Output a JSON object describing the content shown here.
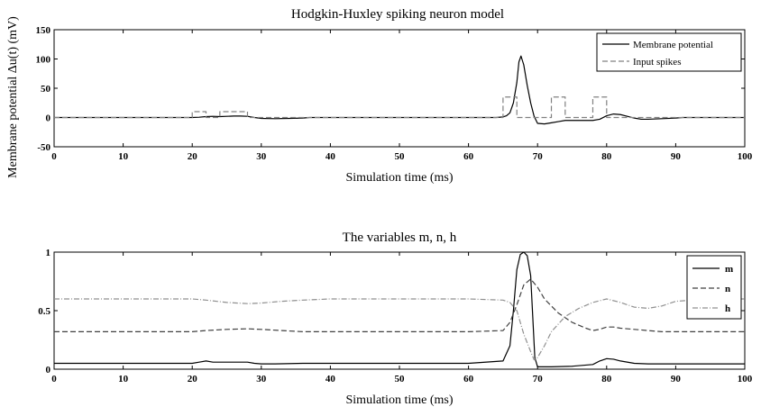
{
  "chart_data": [
    {
      "type": "line",
      "title": "Hodgkin-Huxley spiking neuron model",
      "xlabel": "Simulation time (ms)",
      "ylabel": "Membrane potential Δu(t) (mV)",
      "xlim": [
        0,
        100
      ],
      "ylim": [
        -50,
        150
      ],
      "xticks": [
        0,
        10,
        20,
        30,
        40,
        50,
        60,
        70,
        80,
        90,
        100
      ],
      "yticks": [
        -50,
        0,
        50,
        100,
        150
      ],
      "legend_position": "top-right",
      "series": [
        {
          "name": "Membrane potential",
          "style": "solid",
          "color": "#000000",
          "x": [
            0,
            20,
            21,
            22,
            23,
            24,
            25,
            26,
            27,
            28,
            29,
            30,
            32,
            34,
            36,
            37,
            40,
            50,
            60,
            64,
            65,
            65.5,
            66,
            66.5,
            67,
            67.3,
            67.6,
            68,
            68.5,
            69,
            69.5,
            70,
            71,
            72,
            73,
            74,
            76,
            78,
            79,
            80,
            81,
            82,
            83,
            84,
            85,
            86,
            88,
            90,
            91,
            100
          ],
          "y": [
            0,
            0,
            0.5,
            1.5,
            2,
            1.5,
            2,
            2.5,
            2.5,
            2,
            0,
            -1.5,
            -2,
            -1.5,
            -1,
            0,
            0,
            0,
            0,
            0,
            1,
            3,
            8,
            25,
            60,
            95,
            105,
            90,
            55,
            25,
            2,
            -10,
            -11,
            -9,
            -7,
            -5,
            -5,
            -5,
            -3,
            3,
            6,
            5,
            2,
            -1,
            -3,
            -3,
            -2,
            -1,
            0,
            0
          ]
        },
        {
          "name": "Input spikes",
          "style": "dashed",
          "color": "#808080",
          "x": [
            0,
            20,
            20,
            22,
            22,
            24,
            24,
            28,
            28,
            65,
            65,
            67,
            67,
            72,
            72,
            74,
            74,
            78,
            78,
            80,
            80,
            100
          ],
          "y": [
            0,
            0,
            10,
            10,
            0,
            0,
            10,
            10,
            0,
            0,
            35,
            35,
            0,
            0,
            35,
            35,
            0,
            0,
            35,
            35,
            0,
            0
          ]
        }
      ]
    },
    {
      "type": "line",
      "title": "The variables m, n, h",
      "xlabel": "Simulation time (ms)",
      "ylabel": "",
      "xlim": [
        0,
        100
      ],
      "ylim": [
        0,
        1
      ],
      "xticks": [
        0,
        10,
        20,
        30,
        40,
        50,
        60,
        70,
        80,
        90,
        100
      ],
      "yticks": [
        0,
        0.5,
        1
      ],
      "legend_position": "top-right",
      "series": [
        {
          "name": "m",
          "style": "solid",
          "color": "#000000",
          "x": [
            0,
            20,
            21,
            22,
            23,
            24,
            25,
            26,
            28,
            29,
            30,
            32,
            36,
            40,
            50,
            60,
            65,
            66,
            66.5,
            67,
            67.5,
            68,
            68.5,
            69,
            69.3,
            69.6,
            70,
            72,
            75,
            78,
            79,
            80,
            81,
            82,
            84,
            86,
            90,
            100
          ],
          "y": [
            0.05,
            0.05,
            0.06,
            0.07,
            0.06,
            0.06,
            0.06,
            0.06,
            0.06,
            0.05,
            0.045,
            0.045,
            0.05,
            0.05,
            0.05,
            0.05,
            0.07,
            0.2,
            0.5,
            0.85,
            0.98,
            1.0,
            0.97,
            0.8,
            0.45,
            0.1,
            0.02,
            0.02,
            0.025,
            0.04,
            0.07,
            0.09,
            0.085,
            0.07,
            0.05,
            0.045,
            0.045,
            0.045
          ]
        },
        {
          "name": "n",
          "style": "dashed",
          "color": "#404040",
          "x": [
            0,
            20,
            22,
            25,
            28,
            30,
            33,
            36,
            40,
            50,
            60,
            65,
            66,
            67,
            68,
            69,
            70,
            71,
            73,
            75,
            77,
            78,
            79,
            80,
            81,
            82,
            84,
            86,
            88,
            90,
            100
          ],
          "y": [
            0.32,
            0.32,
            0.33,
            0.34,
            0.345,
            0.34,
            0.33,
            0.32,
            0.32,
            0.32,
            0.32,
            0.33,
            0.4,
            0.55,
            0.72,
            0.77,
            0.7,
            0.6,
            0.48,
            0.4,
            0.35,
            0.33,
            0.34,
            0.36,
            0.36,
            0.35,
            0.34,
            0.33,
            0.32,
            0.32,
            0.32
          ]
        },
        {
          "name": "h",
          "style": "dashdot",
          "color": "#909090",
          "x": [
            0,
            20,
            22,
            25,
            28,
            30,
            33,
            36,
            40,
            50,
            60,
            65,
            66,
            67,
            68,
            69,
            69.5,
            70,
            71,
            72,
            74,
            76,
            78,
            80,
            82,
            84,
            86,
            88,
            90,
            95,
            100
          ],
          "y": [
            0.6,
            0.6,
            0.59,
            0.57,
            0.56,
            0.565,
            0.58,
            0.59,
            0.6,
            0.6,
            0.6,
            0.59,
            0.57,
            0.5,
            0.3,
            0.15,
            0.08,
            0.1,
            0.2,
            0.32,
            0.45,
            0.52,
            0.57,
            0.6,
            0.57,
            0.53,
            0.52,
            0.54,
            0.58,
            0.6,
            0.6
          ]
        }
      ]
    }
  ]
}
